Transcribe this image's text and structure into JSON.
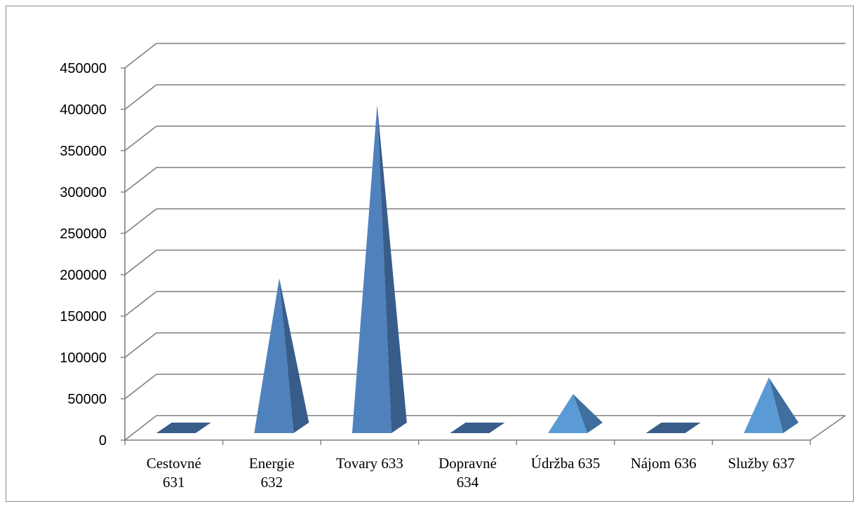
{
  "chart_data": {
    "type": "bar",
    "style": "3d-pyramid",
    "title": "",
    "xlabel": "",
    "ylabel": "",
    "categories": [
      [
        "Cestovné",
        "631"
      ],
      [
        "Energie",
        "632"
      ],
      [
        "Tovary 633"
      ],
      [
        "Dopravné",
        "634"
      ],
      [
        "Údržba 635"
      ],
      [
        "Nájom 636"
      ],
      [
        "Služby 637"
      ]
    ],
    "values": [
      0,
      200000,
      410000,
      0,
      60000,
      0,
      80000
    ],
    "ylim": [
      0,
      450000
    ],
    "yticks": [
      "0",
      "50000",
      "100000",
      "150000",
      "200000",
      "250000",
      "300000",
      "350000",
      "400000",
      "450000"
    ],
    "grid": true,
    "legend": "none",
    "colors": {
      "dark_front": "#4f81bd",
      "dark_side": "#385d8a",
      "light_front": "#5b9bd5",
      "light_side": "#3f6f9f",
      "gridline": "#7f7f7f"
    },
    "series_color": [
      "dark",
      "dark",
      "dark",
      "dark",
      "light",
      "dark",
      "light"
    ]
  }
}
